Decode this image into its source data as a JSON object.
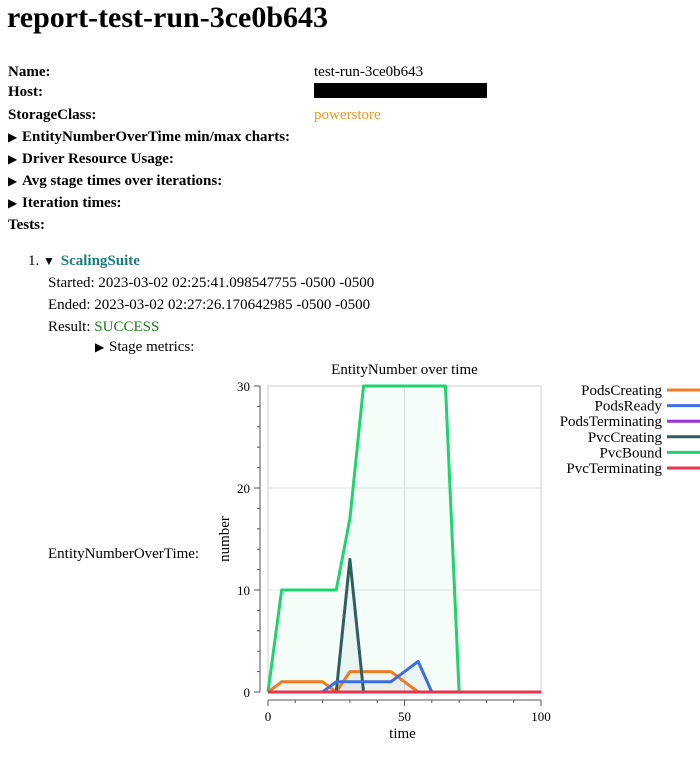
{
  "title": "report-test-run-3ce0b643",
  "fields": {
    "name_label": "Name:",
    "name_value": "test-run-3ce0b643",
    "host_label": "Host:",
    "storage_label": "StorageClass:",
    "storage_value": "powerstore"
  },
  "sections": [
    "EntityNumberOverTime min/max charts:",
    "Driver Resource Usage:",
    "Avg stage times over iterations:",
    "Iteration times:"
  ],
  "tests_label": "Tests:",
  "suite": {
    "index": "1.",
    "name": "ScalingSuite",
    "started_label": "Started:",
    "started_value": "2023-03-02 02:25:41.098547755 -0500 -0500",
    "ended_label": "Ended:",
    "ended_value": "2023-03-02 02:27:26.170642985 -0500 -0500",
    "result_label": "Result:",
    "result_value": "SUCCESS",
    "stage_metrics_label": "Stage metrics:",
    "chart_caption": "EntityNumberOverTime:"
  },
  "icons": {
    "collapsed": "triangle-right-icon",
    "expanded": "triangle-down-icon"
  },
  "chart_data": {
    "type": "line",
    "title": "EntityNumber over time",
    "xlabel": "time",
    "ylabel": "number",
    "xlim": [
      0,
      100
    ],
    "ylim": [
      0,
      30
    ],
    "xticks": [
      0,
      50,
      100
    ],
    "yticks": [
      0,
      10,
      20,
      30
    ],
    "grid": true,
    "legend_position": "right",
    "series": [
      {
        "name": "PodsCreating",
        "color": "#f07b25",
        "x": [
          0,
          5,
          20,
          25,
          30,
          35,
          45,
          50,
          55,
          100
        ],
        "y": [
          0,
          1,
          1,
          0,
          2,
          2,
          2,
          1,
          0,
          0
        ]
      },
      {
        "name": "PodsReady",
        "color": "#3d6ee0",
        "x": [
          0,
          20,
          25,
          45,
          55,
          60,
          100
        ],
        "y": [
          0,
          0,
          1,
          1,
          3,
          0,
          0
        ]
      },
      {
        "name": "PodsTerminating",
        "color": "#9b30e0",
        "x": [
          0,
          100
        ],
        "y": [
          0,
          0
        ]
      },
      {
        "name": "PvcCreating",
        "color": "#2f5f5c",
        "x": [
          0,
          25,
          30,
          35,
          100
        ],
        "y": [
          0,
          0,
          13,
          0,
          0
        ]
      },
      {
        "name": "PvcBound",
        "color": "#1fd36f",
        "x": [
          0,
          5,
          25,
          30,
          35,
          65,
          70,
          100
        ],
        "y": [
          0,
          10,
          10,
          17,
          30,
          30,
          0,
          0
        ]
      },
      {
        "name": "PvcTerminating",
        "color": "#e8344e",
        "x": [
          0,
          100
        ],
        "y": [
          0,
          0
        ]
      }
    ]
  }
}
